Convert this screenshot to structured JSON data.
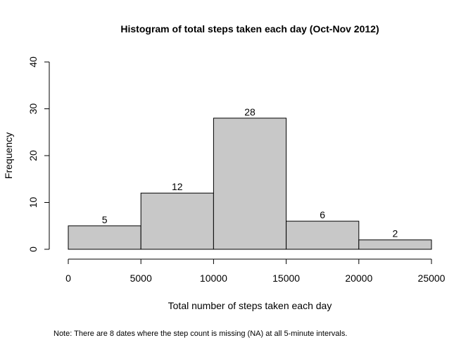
{
  "chart_data": {
    "type": "bar",
    "title": "Histogram of total steps taken each day (Oct-Nov 2012)",
    "xlabel": "Total number of steps taken each day",
    "ylabel": "Frequency",
    "bins": [
      {
        "from": 0,
        "to": 5000,
        "count": 5,
        "label": "5"
      },
      {
        "from": 5000,
        "to": 10000,
        "count": 12,
        "label": "12"
      },
      {
        "from": 10000,
        "to": 15000,
        "count": 28,
        "label": "28"
      },
      {
        "from": 15000,
        "to": 20000,
        "count": 6,
        "label": "6"
      },
      {
        "from": 20000,
        "to": 25000,
        "count": 2,
        "label": "2"
      }
    ],
    "xlim": [
      0,
      25000
    ],
    "ylim": [
      0,
      40
    ],
    "xticks": [
      0,
      5000,
      10000,
      15000,
      20000,
      25000
    ],
    "xtick_labels": [
      "0",
      "5000",
      "10000",
      "15000",
      "20000",
      "25000"
    ],
    "yticks": [
      0,
      10,
      20,
      30,
      40
    ],
    "ytick_labels": [
      "0",
      "10",
      "20",
      "30",
      "40"
    ],
    "grid": false,
    "legend": "none",
    "colors": {
      "bar_fill": "#c8c8c8",
      "bar_stroke": "#000000",
      "axis": "#000000",
      "text": "#000000",
      "background": "#ffffff"
    }
  },
  "note": "Note: There are 8 dates where the step count is missing (NA) at all 5-minute intervals."
}
